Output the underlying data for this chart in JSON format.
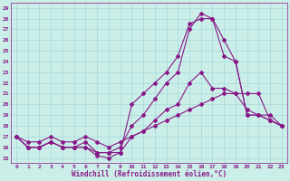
{
  "xlabel": "Windchill (Refroidissement éolien,°C)",
  "bg_color": "#cceee8",
  "grid_color": "#aadddd",
  "line_color": "#881888",
  "xlim": [
    -0.5,
    23.5
  ],
  "ylim": [
    14.5,
    29.5
  ],
  "yticks": [
    15,
    16,
    17,
    18,
    19,
    20,
    21,
    22,
    23,
    24,
    25,
    26,
    27,
    28,
    29
  ],
  "xticks": [
    0,
    1,
    2,
    3,
    4,
    5,
    6,
    7,
    8,
    9,
    10,
    11,
    12,
    13,
    14,
    15,
    16,
    17,
    18,
    19,
    20,
    21,
    22,
    23
  ],
  "lines": [
    {
      "x": [
        0,
        1,
        2,
        3,
        4,
        5,
        6,
        7,
        8,
        9,
        10,
        11,
        12,
        13,
        14,
        15,
        16,
        17,
        18,
        19,
        20,
        21,
        22,
        23
      ],
      "y": [
        17,
        16.5,
        16.5,
        17,
        16.5,
        16.5,
        17,
        16.5,
        16,
        16.5,
        17,
        17.5,
        18,
        18.5,
        19,
        19.5,
        20,
        20.5,
        21,
        21,
        21,
        21,
        18.5,
        18
      ]
    },
    {
      "x": [
        0,
        1,
        2,
        3,
        4,
        5,
        6,
        7,
        8,
        9,
        10,
        11,
        12,
        13,
        14,
        15,
        16,
        17,
        18,
        19,
        20,
        21,
        22,
        23
      ],
      "y": [
        17,
        16,
        16,
        16.5,
        16,
        16,
        16,
        15.2,
        15.0,
        15.5,
        17,
        17.5,
        18.5,
        19.5,
        20,
        22,
        23,
        21.5,
        21.5,
        21,
        19.5,
        19,
        18.5,
        18
      ]
    },
    {
      "x": [
        0,
        1,
        2,
        3,
        4,
        5,
        6,
        7,
        8,
        9,
        10,
        11,
        12,
        13,
        14,
        15,
        16,
        17,
        18,
        19,
        20,
        21,
        22,
        23
      ],
      "y": [
        17,
        16,
        16,
        16.5,
        16,
        16,
        16,
        15.5,
        15.5,
        15.5,
        20,
        21,
        22,
        23,
        24.5,
        27.5,
        28,
        28,
        24.5,
        24,
        19,
        19,
        18.5,
        18
      ]
    },
    {
      "x": [
        0,
        1,
        2,
        3,
        4,
        5,
        6,
        7,
        8,
        9,
        10,
        11,
        12,
        13,
        14,
        15,
        16,
        17,
        18,
        19,
        20,
        21,
        22,
        23
      ],
      "y": [
        17,
        16,
        16,
        16.5,
        16,
        16,
        16.5,
        15.5,
        15.5,
        16,
        18,
        19,
        20.5,
        22,
        23,
        27,
        28.5,
        28,
        26,
        24,
        19,
        19,
        19,
        18
      ]
    }
  ]
}
